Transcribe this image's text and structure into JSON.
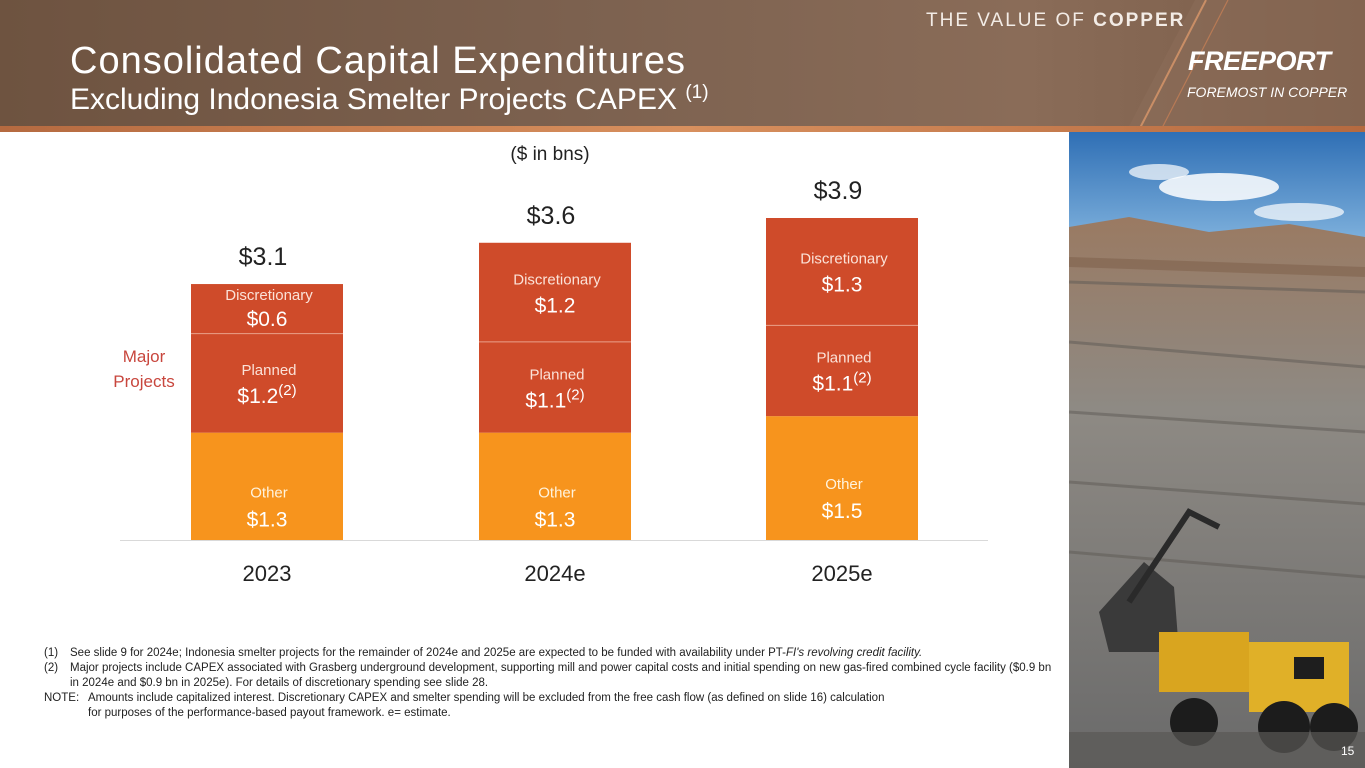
{
  "header": {
    "title": "Consolidated Capital Expenditures",
    "subtitle": "Excluding Indonesia Smelter Projects CAPEX",
    "subtitle_sup": "(1)",
    "tagline_prefix": "THE VALUE OF ",
    "tagline_bold": "COPPER",
    "brand": "FREEPORT",
    "brand_sub": "FOREMOST IN COPPER"
  },
  "unit_label": "($ in bns)",
  "major_projects_label": [
    "Major",
    "Projects"
  ],
  "chart_data": {
    "type": "bar",
    "stacked": true,
    "categories": [
      "2023",
      "2024e",
      "2025e"
    ],
    "series": [
      {
        "name": "Other",
        "values": [
          1.3,
          1.3,
          1.5
        ],
        "labels": [
          "$1.3",
          "$1.3",
          "$1.5"
        ],
        "color": "#f7941d",
        "sup": ""
      },
      {
        "name": "Planned",
        "values": [
          1.2,
          1.1,
          1.1
        ],
        "labels": [
          "$1.2",
          "$1.1",
          "$1.1"
        ],
        "color": "#cf4b2a",
        "sup": "(2)"
      },
      {
        "name": "Discretionary",
        "values": [
          0.6,
          1.2,
          1.3
        ],
        "labels": [
          "$0.6",
          "$1.2",
          "$1.3"
        ],
        "color": "#cf4b2a",
        "sup": ""
      }
    ],
    "totals": [
      "$3.1",
      "$3.6",
      "$3.9"
    ],
    "ylim": [
      0,
      3.9
    ],
    "label_color": "#c8463d"
  },
  "footnotes": [
    {
      "num": "(1)",
      "text": "See slide 9 for 2024e; Indonesia smelter projects for the remainder of 2024e and 2025e are expected to be funded with availability under PT-",
      "italic": "FI's revolving credit facility."
    },
    {
      "num": "(2)",
      "text": "Major projects include CAPEX associated with Grasberg underground development, supporting mill and power capital costs and initial spending on new gas-fired combined cycle facility ($0.9 bn in 2024e and $0.9 bn in 2025e). For details of discretionary spending see slide 28.",
      "italic": ""
    }
  ],
  "note": {
    "label": "NOTE:",
    "line1": "Amounts include capitalized interest. Discretionary CAPEX and smelter spending will be excluded from the free cash flow (as defined on slide 16) calculation",
    "line2": "for purposes of the performance-based payout framework. e= estimate."
  },
  "page_number": "15"
}
